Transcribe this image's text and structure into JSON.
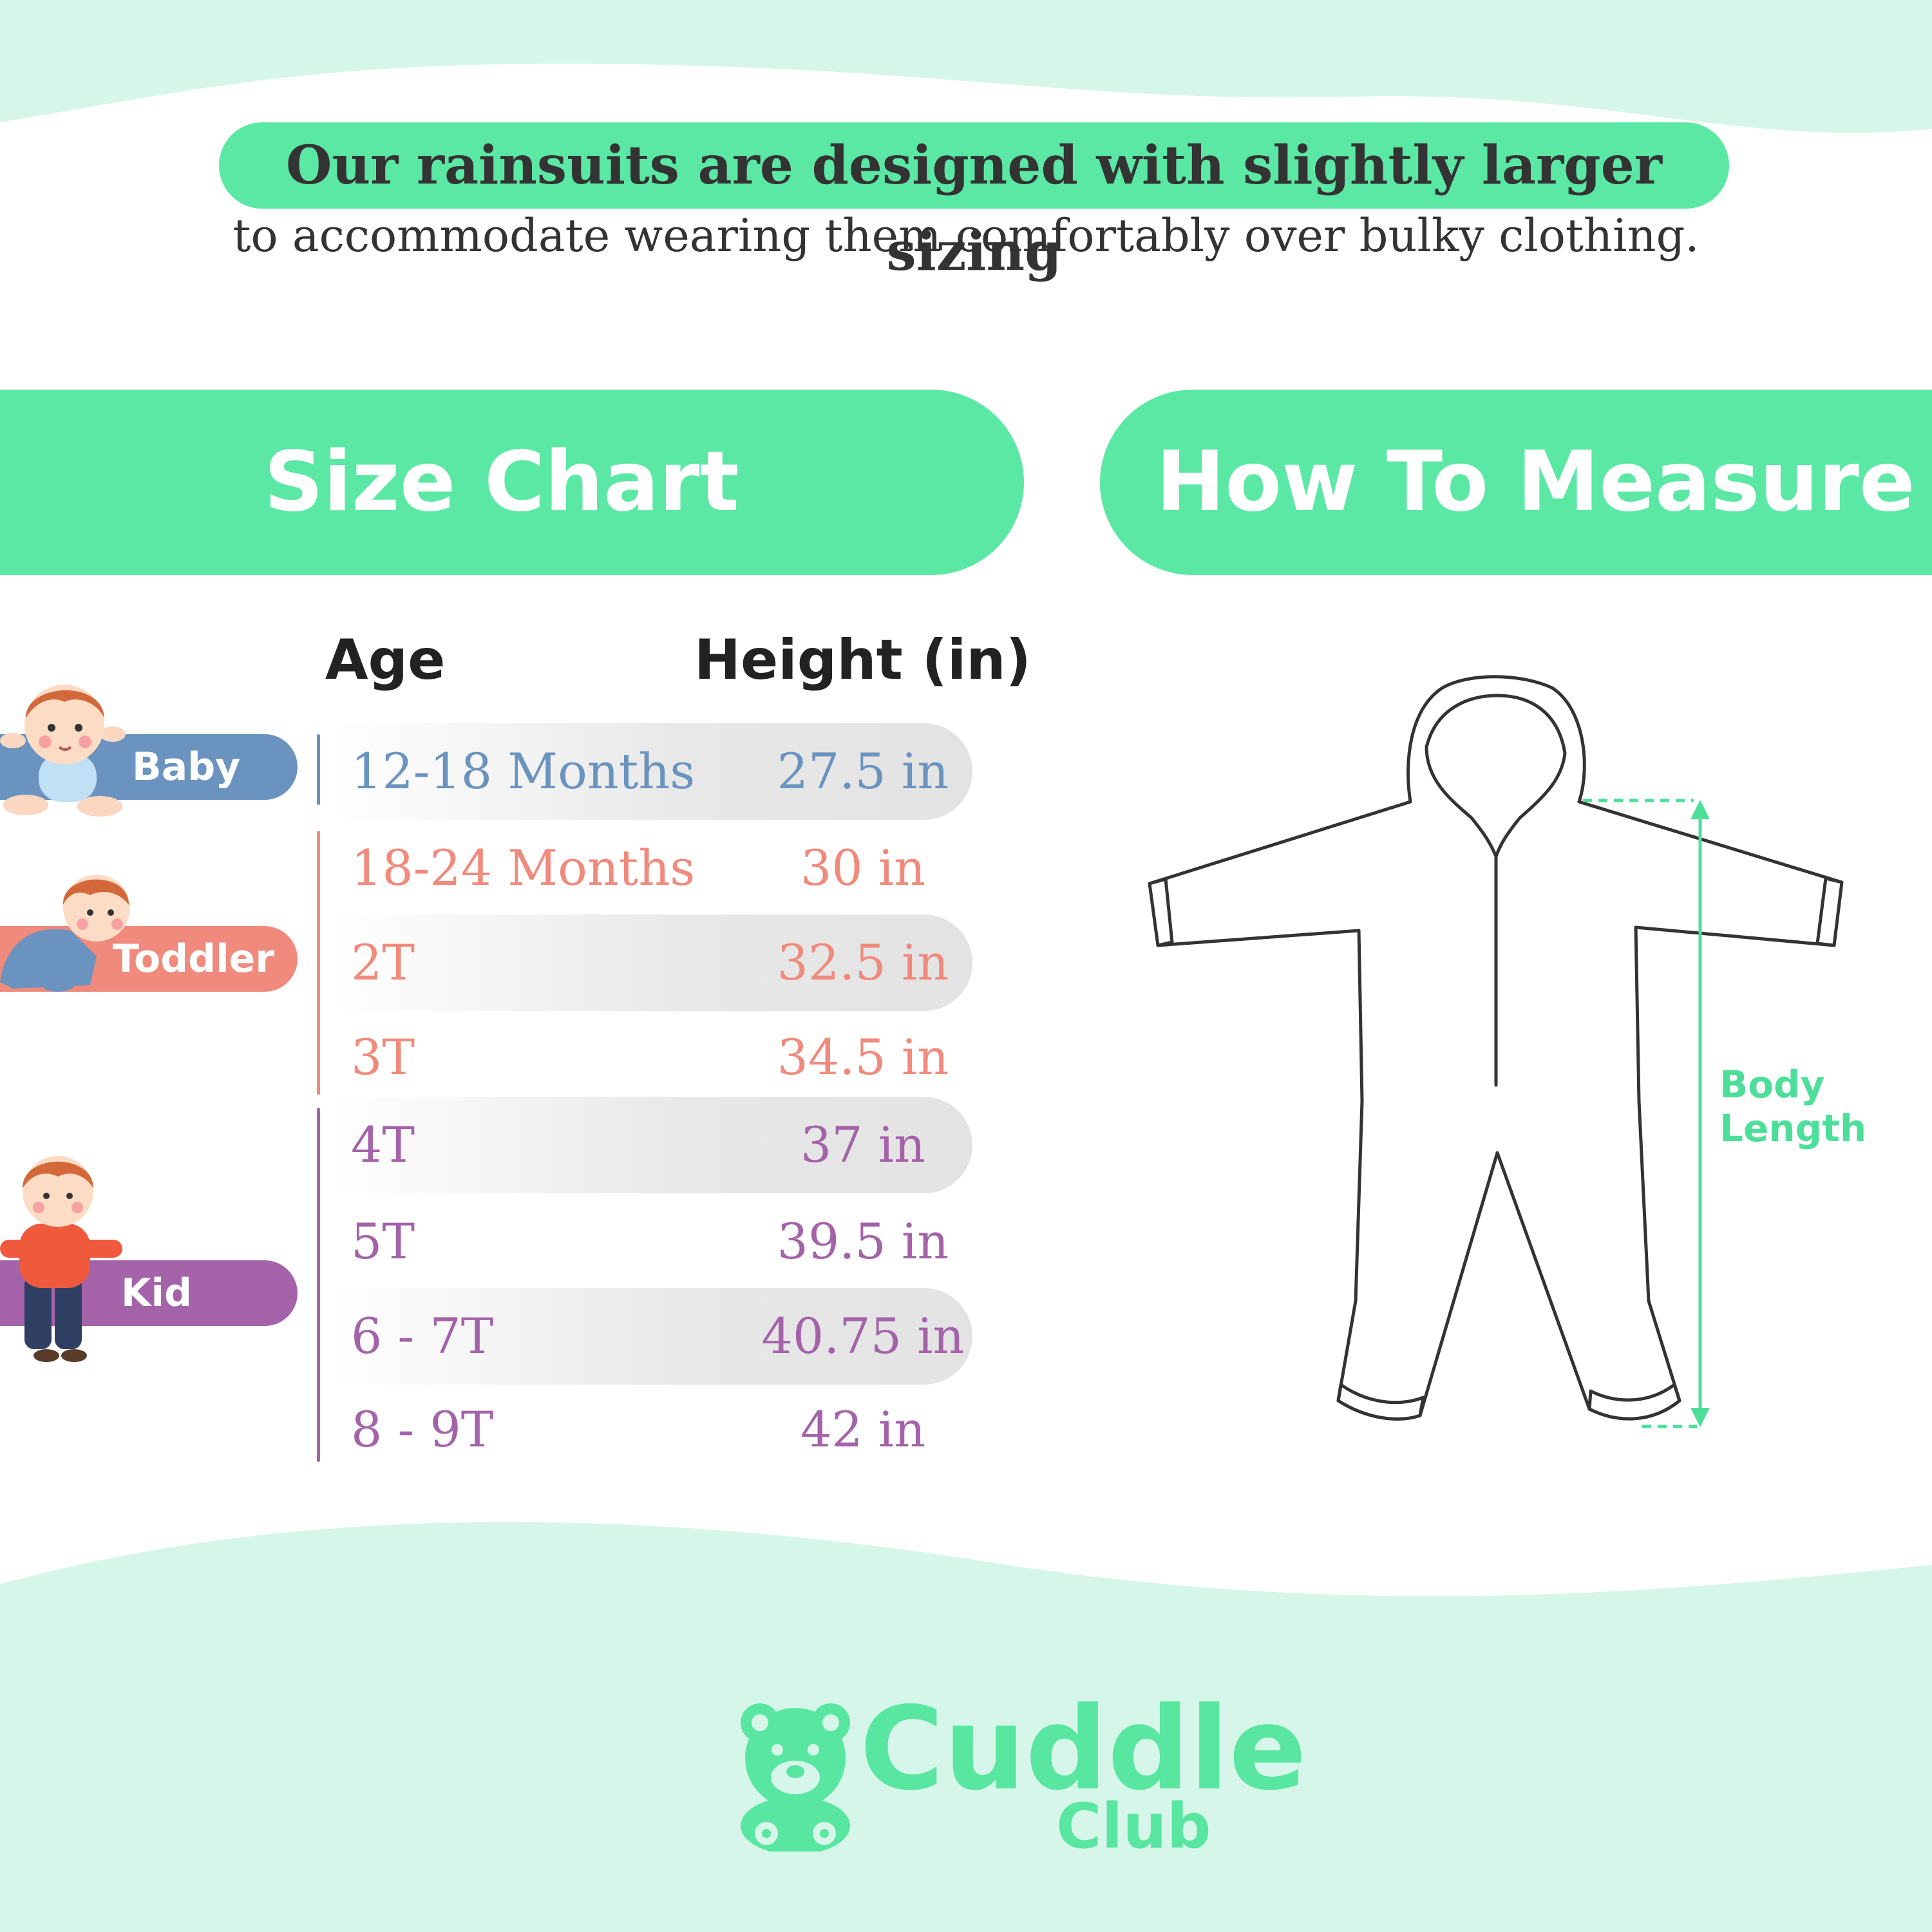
{
  "header": {
    "headline": "Our rainsuits are designed with slightly larger sizing",
    "subline": "to accommodate wearing them comfortably over bulky clothing."
  },
  "sections": {
    "size_chart_title": "Size Chart",
    "how_to_measure_title": "How To Measure"
  },
  "table": {
    "col_age": "Age",
    "col_height": "Height (in)",
    "rows": [
      {
        "age": "12-18 Months",
        "height": "27.5 in"
      },
      {
        "age": "18-24 Months",
        "height": "30 in"
      },
      {
        "age": "2T",
        "height": "32.5 in"
      },
      {
        "age": "3T",
        "height": "34.5 in"
      },
      {
        "age": "4T",
        "height": "37 in"
      },
      {
        "age": "5T",
        "height": "39.5 in"
      },
      {
        "age": "6 - 7T",
        "height": "40.75 in"
      },
      {
        "age": "8 - 9T",
        "height": "42 in"
      }
    ]
  },
  "categories": {
    "baby": "Baby",
    "toddler": "Toddler",
    "kid": "Kid"
  },
  "colors": {
    "accent_green": "#5be8a5",
    "baby_blue": "#6a93bf",
    "toddler_coral": "#f08a7c",
    "kid_purple": "#a463a9"
  },
  "measure": {
    "label_line1": "Body",
    "label_line2": "Length"
  },
  "logo": {
    "word1": "Cuddle",
    "word2": "Club",
    "icon": "teddy-bear-icon"
  }
}
